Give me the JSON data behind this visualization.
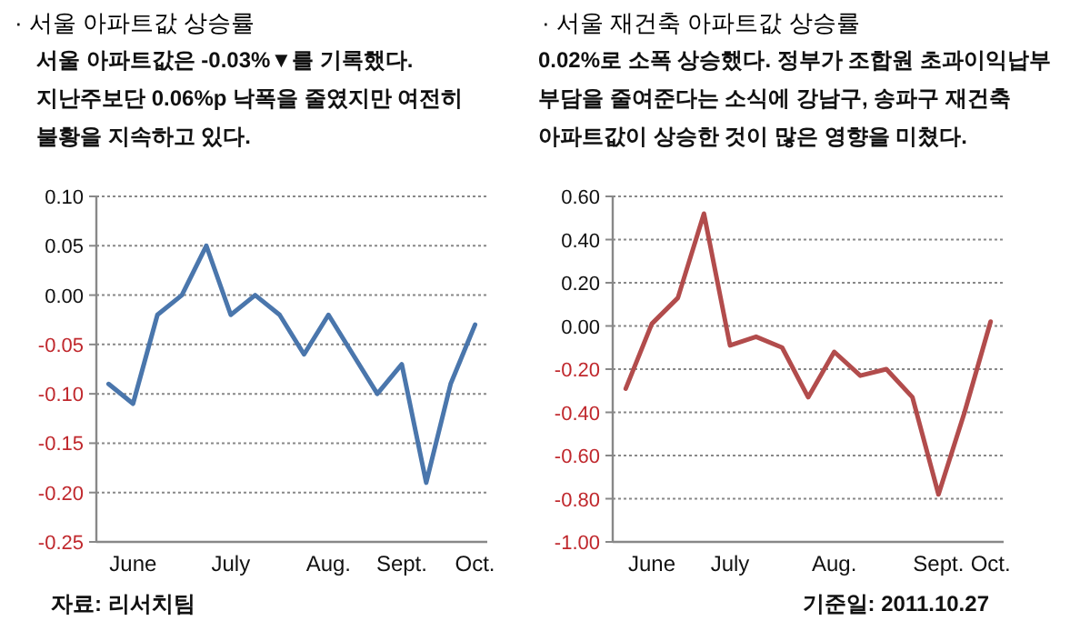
{
  "chart_data": [
    {
      "type": "line",
      "title": "· 서울 아파트값 상승률",
      "subtitle": "서울 아파트값은 -0.03%▼를 기록했다.\n지난주보단  0.06%p 낙폭을 줄였지만 여전히\n불황을 지속하고 있다.",
      "categories": [
        null,
        "June",
        null,
        null,
        null,
        "July",
        null,
        null,
        null,
        "Aug.",
        null,
        null,
        "Sept.",
        null,
        null,
        "Oct."
      ],
      "series": [
        {
          "color": "#4a76ac",
          "values": [
            -0.09,
            -0.11,
            -0.02,
            0.0,
            0.05,
            -0.02,
            0.0,
            -0.02,
            -0.06,
            -0.02,
            -0.06,
            -0.1,
            -0.07,
            -0.19,
            -0.09,
            -0.03
          ]
        }
      ],
      "ylim": [
        -0.25,
        0.1
      ],
      "yticks": [
        {
          "value": -0.25,
          "label": "-0.25"
        },
        {
          "value": -0.2,
          "label": "-0.20"
        },
        {
          "value": -0.15,
          "label": "-0.15"
        },
        {
          "value": -0.1,
          "label": "-0.10"
        },
        {
          "value": -0.05,
          "label": "-0.05"
        },
        {
          "value": 0,
          "label": "0.00"
        },
        {
          "value": 0.05,
          "label": "0.05"
        },
        {
          "value": 0.1,
          "label": "0.10"
        }
      ],
      "grid": "y",
      "line_style": "solid",
      "annotations": [
        "자료: 리서치팀"
      ]
    },
    {
      "type": "line",
      "title": "· 서울 재건축 아파트값 상승률",
      "subtitle": "0.02%로  소폭 상승했다.  정부가 조합원 초과이익납부\n부담을 줄여준다는 소식에 강남구, 송파구 재건축\n아파트값이 상승한 것이 많은 영향을 미쳤다.",
      "categories": [
        null,
        "June",
        null,
        null,
        "July",
        null,
        null,
        null,
        "Aug.",
        null,
        null,
        null,
        "Sept.",
        null,
        "Oct."
      ],
      "series": [
        {
          "color": "#b24c4c",
          "values": [
            -0.29,
            0.01,
            0.13,
            0.52,
            -0.09,
            -0.05,
            -0.1,
            -0.33,
            -0.12,
            -0.23,
            -0.2,
            -0.33,
            -0.78,
            -0.4,
            0.02
          ]
        }
      ],
      "ylim": [
        -1.0,
        0.6
      ],
      "yticks": [
        {
          "value": -1,
          "label": "-1.00"
        },
        {
          "value": -0.8,
          "label": "-0.80"
        },
        {
          "value": -0.6,
          "label": "-0.60"
        },
        {
          "value": -0.4,
          "label": "-0.40"
        },
        {
          "value": -0.2,
          "label": "-0.20"
        },
        {
          "value": 0,
          "label": "0.00"
        },
        {
          "value": 0.2,
          "label": "0.20"
        },
        {
          "value": 0.4,
          "label": "0.40"
        },
        {
          "value": 0.6,
          "label": "0.60"
        }
      ],
      "grid": "y",
      "line_style": "solid",
      "annotations": [
        "기준일: 2011.10.27"
      ]
    }
  ]
}
